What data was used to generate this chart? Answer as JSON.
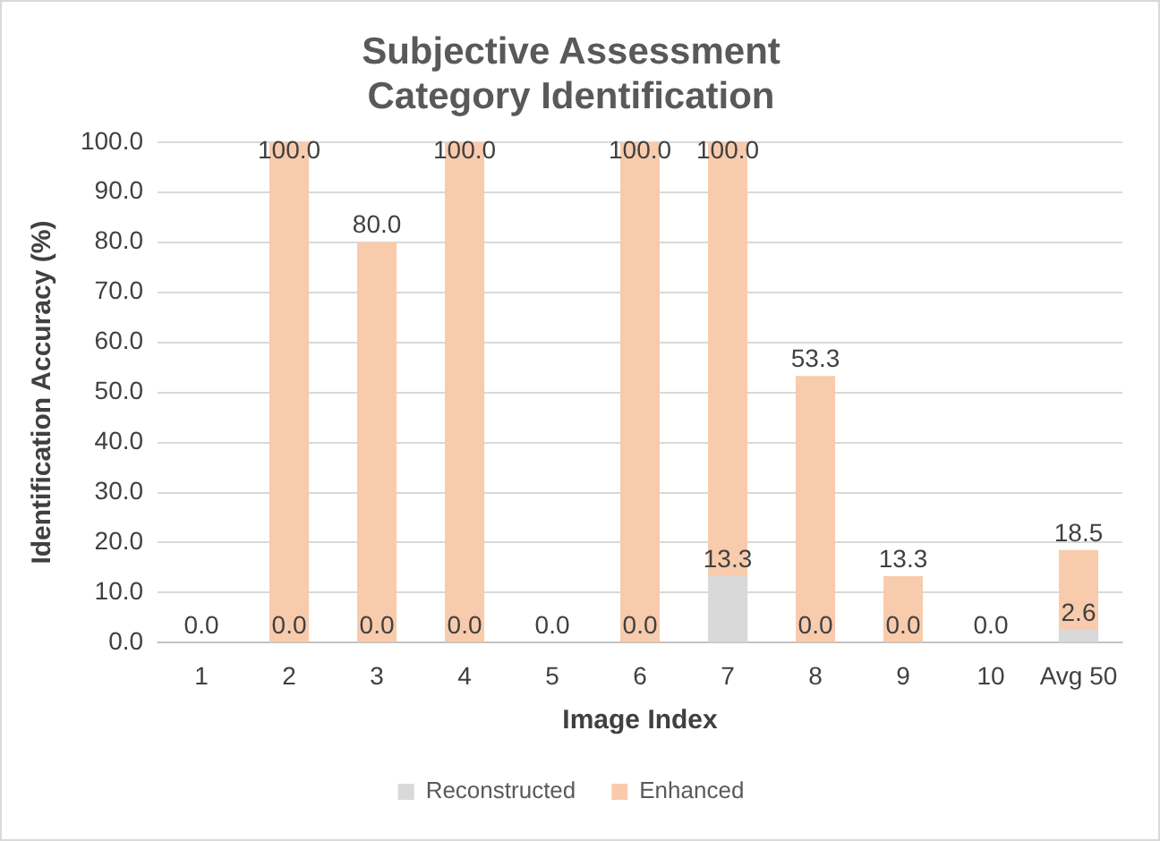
{
  "chart_data": {
    "type": "bar",
    "title": "Subjective Assessment\nCategory Identification",
    "xlabel": "Image Index",
    "ylabel": "Identification Accuracy (%)",
    "categories": [
      "1",
      "2",
      "3",
      "4",
      "5",
      "6",
      "7",
      "8",
      "9",
      "10",
      "Avg 50"
    ],
    "series": [
      {
        "name": "Reconstructed",
        "color": "#d9d9d9",
        "values": [
          0.0,
          0.0,
          0.0,
          0.0,
          0.0,
          0.0,
          13.3,
          0.0,
          0.0,
          0.0,
          2.6
        ],
        "value_labels": [
          "0.0",
          "0.0",
          "0.0",
          "0.0",
          "0.0",
          "0.0",
          "13.3",
          "0.0",
          "0.0",
          "0.0",
          "2.6"
        ]
      },
      {
        "name": "Enhanced",
        "color": "#f8cbad",
        "values": [
          0.0,
          100.0,
          80.0,
          100.0,
          0.0,
          100.0,
          100.0,
          53.3,
          13.3,
          0.0,
          18.5
        ],
        "value_labels": [
          null,
          "100.0",
          "80.0",
          "100.0",
          null,
          "100.0",
          "100.0",
          "53.3",
          "13.3",
          null,
          "18.5"
        ]
      }
    ],
    "ylim": [
      0,
      100
    ],
    "yticks": [
      {
        "value": 0,
        "label": "0.0"
      },
      {
        "value": 10,
        "label": "10.0"
      },
      {
        "value": 20,
        "label": "20.0"
      },
      {
        "value": 30,
        "label": "30.0"
      },
      {
        "value": 40,
        "label": "40.0"
      },
      {
        "value": 50,
        "label": "50.0"
      },
      {
        "value": 60,
        "label": "60.0"
      },
      {
        "value": 70,
        "label": "70.0"
      },
      {
        "value": 80,
        "label": "80.0"
      },
      {
        "value": 90,
        "label": "90.0"
      },
      {
        "value": 100,
        "label": "100.0"
      }
    ],
    "grid": "y",
    "legend": "bottom"
  }
}
